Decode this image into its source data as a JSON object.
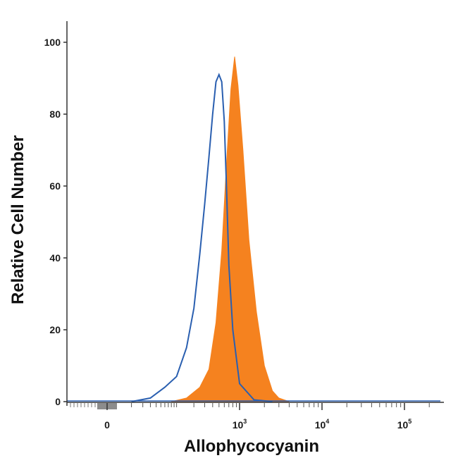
{
  "chart_data": {
    "type": "area",
    "title": "",
    "xlabel": "Allophycocyanin",
    "ylabel": "Relative Cell Number",
    "x_scale": "biexponential",
    "x_tick_labels": [
      {
        "base": "0",
        "exp": ""
      },
      {
        "base": "10",
        "exp": "3"
      },
      {
        "base": "10",
        "exp": "4"
      },
      {
        "base": "10",
        "exp": "5"
      }
    ],
    "y_ticks": [
      0,
      20,
      40,
      60,
      80,
      100
    ],
    "ylim": [
      0,
      100
    ],
    "grid": false,
    "series": [
      {
        "style": "outline",
        "color": "#2a5fb0",
        "x": [
          10,
          30,
          60,
          100,
          150,
          200,
          250,
          300,
          350,
          400,
          450,
          500,
          550,
          600,
          650,
          700,
          800,
          1000,
          1500,
          2500
        ],
        "y": [
          0,
          1,
          4,
          7,
          15,
          26,
          41,
          55,
          68,
          80,
          89,
          91,
          89,
          78,
          58,
          38,
          20,
          5,
          0.5,
          0
        ]
      },
      {
        "style": "filled",
        "color": "#f5821f",
        "x": [
          80,
          150,
          250,
          350,
          450,
          550,
          650,
          750,
          850,
          950,
          1100,
          1300,
          1600,
          2000,
          2500,
          3000,
          4000
        ],
        "y": [
          0,
          1,
          4,
          9,
          22,
          42,
          67,
          87,
          96,
          88,
          70,
          45,
          25,
          10,
          3,
          1,
          0
        ]
      }
    ],
    "fill_color": "#f5821f",
    "outline_color": "#2a5fb0"
  }
}
